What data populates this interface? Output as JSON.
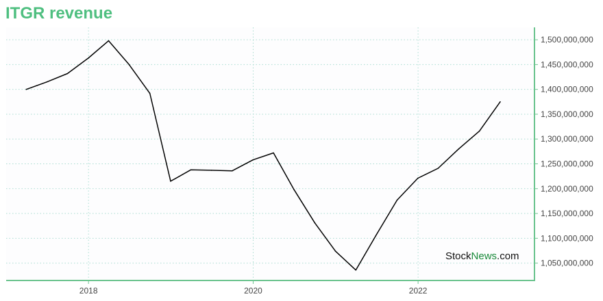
{
  "title": "ITGR revenue",
  "watermark": {
    "part1": "Stock",
    "part2": "News",
    "part3": ".com"
  },
  "colors": {
    "title": "#4fbf80",
    "axis": "#6cc48f",
    "grid": "#a8dcd0",
    "line": "#000000",
    "watermark_dark": "#111111",
    "watermark_green": "#1a8a3a"
  },
  "chart_data": {
    "type": "line",
    "title": "ITGR revenue",
    "xlabel": "",
    "ylabel": "",
    "x_tick_labels": [
      "2018",
      "2020",
      "2022"
    ],
    "y_tick_labels": [
      "1,050,000,000",
      "1,100,000,000",
      "1,150,000,000",
      "1,200,000,000",
      "1,250,000,000",
      "1,300,000,000",
      "1,350,000,000",
      "1,400,000,000",
      "1,450,000,000",
      "1,500,000,000"
    ],
    "y_ticks": [
      1050000000,
      1100000000,
      1150000000,
      1200000000,
      1250000000,
      1300000000,
      1350000000,
      1400000000,
      1450000000,
      1500000000
    ],
    "xlim": [
      "2017-01-01",
      "2023-06-01"
    ],
    "ylim": [
      1015000000,
      1525000000
    ],
    "grid": true,
    "y_axis_side": "right",
    "series": [
      {
        "x": [
          "2017-03-31",
          "2017-06-30",
          "2017-09-30",
          "2017-12-31",
          "2018-03-31",
          "2018-06-30",
          "2018-09-30",
          "2018-12-31",
          "2019-03-31",
          "2019-06-30",
          "2019-09-30",
          "2019-12-31",
          "2020-03-31",
          "2020-06-30",
          "2020-09-30",
          "2020-12-31",
          "2021-03-31",
          "2021-06-30",
          "2021-09-30",
          "2021-12-31",
          "2022-03-31",
          "2022-06-30",
          "2022-09-30",
          "2022-12-31"
        ],
        "values": [
          1400000000,
          1415000000,
          1432000000,
          1463000000,
          1498000000,
          1450000000,
          1392000000,
          1215000000,
          1238000000,
          1237000000,
          1236000000,
          1258000000,
          1272000000,
          1198000000,
          1131000000,
          1074000000,
          1036000000,
          1107000000,
          1177000000,
          1221000000,
          1241000000,
          1280000000,
          1316000000,
          1375000000
        ]
      }
    ]
  }
}
